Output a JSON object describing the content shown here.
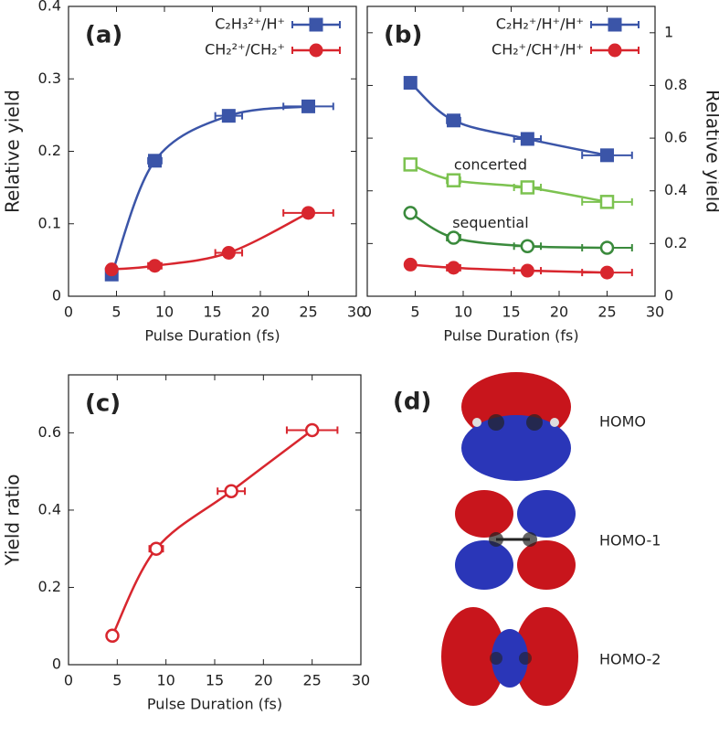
{
  "chart_data": [
    {
      "type": "line",
      "label": "(a)",
      "xlabel": "Pulse Duration (fs)",
      "ylabel": "Relative yield",
      "xlim": [
        0,
        30
      ],
      "xticks": [
        0,
        5,
        10,
        15,
        20,
        25,
        30
      ],
      "ylim": [
        0,
        0.4
      ],
      "yticks": [
        0,
        0.1,
        0.2,
        0.3,
        0.4
      ],
      "y_axis_side": "left",
      "legend": "upper right",
      "series": [
        {
          "name": "C₂H₃²⁺/H⁺",
          "color": "#3b55a8",
          "marker": "square",
          "filled": true,
          "x": [
            4.5,
            9,
            16.7,
            25
          ],
          "xerr": [
            0.3,
            0.7,
            1.4,
            2.6
          ],
          "values": [
            0.03,
            0.187,
            0.249,
            0.262
          ]
        },
        {
          "name": "CH₂²⁺/CH₂⁺",
          "color": "#d8262e",
          "marker": "circle",
          "filled": true,
          "x": [
            4.5,
            9,
            16.7,
            25
          ],
          "xerr": [
            0.3,
            0.7,
            1.4,
            2.6
          ],
          "values": [
            0.037,
            0.042,
            0.06,
            0.115
          ]
        }
      ]
    },
    {
      "type": "line",
      "label": "(b)",
      "xlabel": "Pulse Duration (fs)",
      "ylabel": "Relative yield",
      "xlim": [
        0,
        30
      ],
      "xticks": [
        0,
        5,
        10,
        15,
        20,
        25,
        30
      ],
      "ylim": [
        0,
        1.1
      ],
      "yticks": [
        0,
        0.2,
        0.4,
        0.6,
        0.8,
        1
      ],
      "y_axis_side": "right",
      "legend": "upper right",
      "series": [
        {
          "name": "C₂H₂⁺/H⁺/H⁺",
          "color": "#3b55a8",
          "marker": "square",
          "filled": true,
          "x": [
            4.5,
            9,
            16.7,
            25
          ],
          "xerr": [
            0.3,
            0.7,
            1.4,
            2.6
          ],
          "values": [
            0.81,
            0.667,
            0.597,
            0.535
          ]
        },
        {
          "name": "CH₂⁺/CH⁺/H⁺",
          "color": "#d8262e",
          "marker": "circle",
          "filled": true,
          "x": [
            4.5,
            9,
            16.7,
            25
          ],
          "xerr": [
            0.3,
            0.7,
            1.4,
            2.6
          ],
          "values": [
            0.12,
            0.108,
            0.097,
            0.09
          ]
        },
        {
          "name": "concerted",
          "inline_label": true,
          "color": "#7cc250",
          "marker": "square",
          "filled": false,
          "x": [
            4.5,
            9,
            16.7,
            25
          ],
          "xerr": [
            0.3,
            0.7,
            1.4,
            2.6
          ],
          "values": [
            0.5,
            0.44,
            0.413,
            0.358
          ]
        },
        {
          "name": "sequential",
          "inline_label": true,
          "color": "#3a8a3c",
          "marker": "circle",
          "filled": false,
          "x": [
            4.5,
            9,
            16.7,
            25
          ],
          "xerr": [
            0.3,
            0.7,
            1.4,
            2.6
          ],
          "values": [
            0.316,
            0.222,
            0.19,
            0.184
          ]
        }
      ]
    },
    {
      "type": "line",
      "label": "(c)",
      "xlabel": "Pulse Duration (fs)",
      "ylabel": "Yield ratio",
      "xlim": [
        0,
        30
      ],
      "xticks": [
        0,
        5,
        10,
        15,
        20,
        25,
        30
      ],
      "ylim": [
        0,
        0.75
      ],
      "yticks": [
        0,
        0.2,
        0.4,
        0.6
      ],
      "y_axis_side": "left",
      "series": [
        {
          "color": "#d8262e",
          "marker": "circle",
          "filled": false,
          "x": [
            4.5,
            9,
            16.7,
            25
          ],
          "xerr": [
            0.3,
            0.7,
            1.4,
            2.6
          ],
          "values": [
            0.075,
            0.3,
            0.449,
            0.607
          ]
        }
      ]
    }
  ],
  "orbitals": {
    "label": "(d)",
    "names": [
      "HOMO",
      "HOMO-1",
      "HOMO-2"
    ]
  }
}
